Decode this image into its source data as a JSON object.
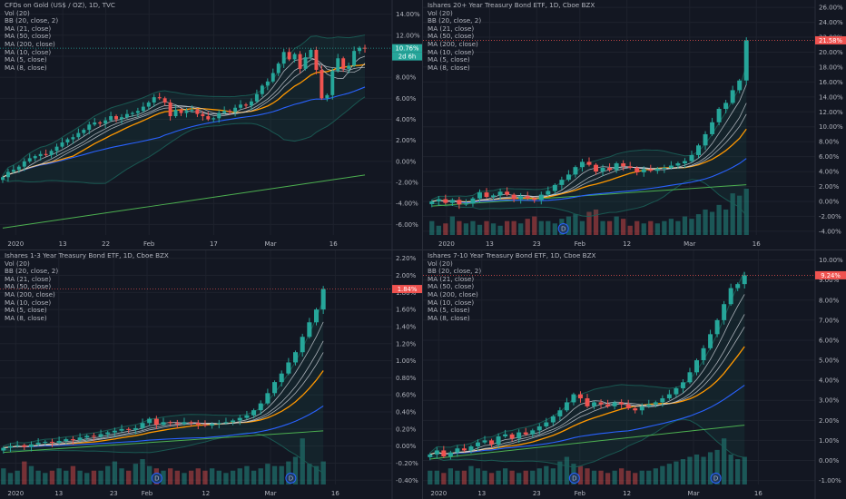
{
  "panes": [
    {
      "title": "CFDs on Gold (US$ / OZ), 1D, TVC",
      "indicators": [
        "Vol (20)",
        "BB (20, close, 2)",
        "MA (21, close)",
        "MA (50, close)",
        "MA (200, close)",
        "MA (10, close)",
        "MA (5, close)",
        "MA (8, close)"
      ],
      "price_label": "10.76%",
      "countdown_label": "2d 6h",
      "label_color": "#26a69a",
      "y_ticks": [
        "14.00%",
        "12.00%",
        "10.00%",
        "8.00%",
        "6.00%",
        "4.00%",
        "2.00%",
        "0.00%",
        "-2.00%",
        "-4.00%",
        "-6.00%"
      ],
      "x_ticks": [
        "2020",
        "13",
        "22",
        "Feb",
        "17",
        "Mar",
        "16"
      ],
      "has_volume": false
    },
    {
      "title": "Ishares 20+ Year Treasury Bond ETF, 1D, Cboe BZX",
      "indicators": [
        "Vol (20)",
        "BB (20, close, 2)",
        "MA (21, close)",
        "MA (50, close)",
        "MA (200, close)",
        "MA (10, close)",
        "MA (5, close)",
        "MA (8, close)"
      ],
      "price_label": "21.58%",
      "countdown_label": "",
      "label_color": "#ef5350",
      "y_ticks": [
        "26.00%",
        "24.00%",
        "22.00%",
        "20.00%",
        "18.00%",
        "16.00%",
        "14.00%",
        "12.00%",
        "10.00%",
        "8.00%",
        "6.00%",
        "4.00%",
        "2.00%",
        "0.00%",
        "-2.00%",
        "-4.00%"
      ],
      "x_ticks": [
        "2020",
        "13",
        "23",
        "Feb",
        "12",
        "Mar",
        "16"
      ],
      "has_volume": true
    },
    {
      "title": "Ishares 1-3 Year Treasury Bond ETF, 1D, Cboe BZX",
      "indicators": [
        "Vol (20)",
        "BB (20, close, 2)",
        "MA (21, close)",
        "MA (50, close)",
        "MA (200, close)",
        "MA (10, close)",
        "MA (5, close)",
        "MA (8, close)"
      ],
      "price_label": "1.84%",
      "countdown_label": "",
      "label_color": "#ef5350",
      "y_ticks": [
        "2.20%",
        "2.00%",
        "1.80%",
        "1.60%",
        "1.40%",
        "1.20%",
        "1.00%",
        "0.80%",
        "0.60%",
        "0.40%",
        "0.20%",
        "0.00%",
        "-0.20%",
        "-0.40%"
      ],
      "x_ticks": [
        "2020",
        "13",
        "23",
        "Feb",
        "12",
        "Mar",
        "16"
      ],
      "has_volume": true
    },
    {
      "title": "Ishares 7-10 Year Treasury Bond ETF, 1D, Cboe BZX",
      "indicators": [
        "Vol (20)",
        "BB (20, close, 2)",
        "MA (21, close)",
        "MA (50, close)",
        "MA (200, close)",
        "MA (10, close)",
        "MA (5, close)",
        "MA (8, close)"
      ],
      "price_label": "9.24%",
      "countdown_label": "",
      "label_color": "#ef5350",
      "y_ticks": [
        "10.00%",
        "9.00%",
        "8.00%",
        "7.00%",
        "6.00%",
        "5.00%",
        "4.00%",
        "3.00%",
        "2.00%",
        "1.00%",
        "0.00%",
        "-1.00%"
      ],
      "x_ticks": [
        "2020",
        "13",
        "23",
        "Feb",
        "12",
        "Mar",
        "16"
      ],
      "has_volume": true
    }
  ],
  "dividend_marker": "D",
  "colors": {
    "background": "#131722",
    "grid": "#1e222d",
    "text": "#b2b5be",
    "up": "#26a69a",
    "down": "#ef5350",
    "ma_orange": "#ff9800",
    "ma_blue": "#2962ff",
    "ma_green": "#4caf50",
    "ma_white": "#d1d4dc",
    "bb_band": "#1b5e57"
  },
  "chart_data": [
    {
      "type": "candlestick",
      "title": "CFDs on Gold (US$ / OZ), 1D, TVC",
      "ylim": [
        -7,
        15
      ],
      "close": [
        -1.5,
        -1.0,
        -0.8,
        -0.5,
        0.0,
        0.3,
        0.5,
        0.7,
        0.6,
        1.0,
        1.4,
        1.8,
        2.1,
        2.3,
        2.7,
        3.0,
        3.5,
        3.7,
        3.6,
        3.9,
        4.3,
        4.0,
        4.2,
        4.5,
        4.6,
        4.8,
        5.2,
        5.6,
        6.1,
        6.0,
        5.6,
        4.3,
        4.9,
        4.6,
        4.8,
        4.9,
        4.5,
        4.3,
        4.0,
        4.1,
        4.6,
        4.8,
        4.7,
        5.1,
        5.4,
        5.3,
        5.7,
        6.4,
        7.2,
        7.6,
        8.4,
        9.3,
        10.4,
        9.7,
        10.2,
        8.8,
        9.9,
        10.6,
        8.7,
        6.0,
        6.3,
        8.6,
        9.8,
        8.8,
        9.1,
        10.5,
        10.8,
        10.76
      ],
      "ma_21_end": 7.5,
      "ma_50_end": 5.0,
      "ma_200_end": -1.3
    },
    {
      "type": "candlestick",
      "title": "Ishares 20+ Year Treasury Bond ETF, 1D, Cboe BZX",
      "ylim": [
        -4.5,
        26.5
      ],
      "close": [
        0.0,
        0.3,
        -0.2,
        0.2,
        -0.4,
        -0.3,
        0.4,
        1.2,
        0.6,
        0.8,
        1.3,
        0.9,
        0.3,
        0.7,
        0.4,
        0.2,
        0.9,
        1.4,
        2.2,
        2.9,
        3.6,
        4.6,
        5.3,
        4.9,
        4.0,
        4.5,
        4.2,
        5.1,
        4.7,
        4.5,
        3.9,
        4.3,
        4.1,
        4.4,
        4.5,
        4.8,
        5.1,
        5.4,
        6.2,
        7.5,
        9.0,
        10.6,
        12.4,
        13.2,
        14.9,
        16.2,
        21.58
      ],
      "volume_rel": [
        0.3,
        0.2,
        0.25,
        0.4,
        0.3,
        0.25,
        0.3,
        0.22,
        0.3,
        0.25,
        0.2,
        0.3,
        0.3,
        0.25,
        0.35,
        0.4,
        0.3,
        0.3,
        0.25,
        0.35,
        0.4,
        0.45,
        0.3,
        0.5,
        0.55,
        0.3,
        0.3,
        0.4,
        0.35,
        0.2,
        0.3,
        0.25,
        0.3,
        0.25,
        0.3,
        0.35,
        0.3,
        0.4,
        0.35,
        0.45,
        0.55,
        0.5,
        0.65,
        0.55,
        0.9,
        0.85,
        1.0
      ]
    },
    {
      "type": "candlestick",
      "title": "Ishares 1-3 Year Treasury Bond ETF, 1D, Cboe BZX",
      "ylim": [
        -0.45,
        2.25
      ],
      "close": [
        -0.02,
        0.0,
        0.01,
        -0.01,
        0.02,
        0.04,
        0.05,
        0.04,
        0.06,
        0.08,
        0.07,
        0.1,
        0.12,
        0.11,
        0.14,
        0.16,
        0.18,
        0.2,
        0.19,
        0.21,
        0.27,
        0.32,
        0.25,
        0.28,
        0.27,
        0.26,
        0.28,
        0.27,
        0.25,
        0.24,
        0.26,
        0.27,
        0.28,
        0.3,
        0.33,
        0.36,
        0.42,
        0.5,
        0.62,
        0.75,
        0.85,
        0.98,
        1.1,
        1.28,
        1.45,
        1.6,
        1.84
      ],
      "volume_rel": [
        0.35,
        0.25,
        0.3,
        0.5,
        0.4,
        0.3,
        0.25,
        0.3,
        0.35,
        0.3,
        0.4,
        0.3,
        0.25,
        0.3,
        0.3,
        0.4,
        0.5,
        0.35,
        0.3,
        0.45,
        0.55,
        0.4,
        0.35,
        0.3,
        0.35,
        0.3,
        0.25,
        0.3,
        0.35,
        0.3,
        0.35,
        0.3,
        0.25,
        0.3,
        0.35,
        0.4,
        0.3,
        0.35,
        0.45,
        0.4,
        0.4,
        0.5,
        0.6,
        1.0,
        0.45,
        0.4,
        0.5
      ]
    },
    {
      "type": "candlestick",
      "title": "Ishares 7-10 Year Treasury Bond ETF, 1D, Cboe BZX",
      "ylim": [
        -1.2,
        10.3
      ],
      "close": [
        0.3,
        0.5,
        0.2,
        0.4,
        0.6,
        0.5,
        0.7,
        0.9,
        1.0,
        0.8,
        1.2,
        1.3,
        1.1,
        1.4,
        1.3,
        1.5,
        1.7,
        1.9,
        2.2,
        2.5,
        2.9,
        3.3,
        3.1,
        2.7,
        2.9,
        2.8,
        2.7,
        2.9,
        2.8,
        2.6,
        2.5,
        2.7,
        2.8,
        2.9,
        3.1,
        3.3,
        3.6,
        3.9,
        4.4,
        5.0,
        5.6,
        6.3,
        7.0,
        7.8,
        8.6,
        8.8,
        9.24
      ],
      "volume_rel": [
        0.3,
        0.3,
        0.25,
        0.35,
        0.3,
        0.3,
        0.4,
        0.35,
        0.3,
        0.25,
        0.3,
        0.35,
        0.3,
        0.25,
        0.3,
        0.3,
        0.35,
        0.4,
        0.35,
        0.5,
        0.6,
        0.45,
        0.4,
        0.35,
        0.3,
        0.3,
        0.25,
        0.3,
        0.35,
        0.3,
        0.25,
        0.3,
        0.3,
        0.35,
        0.4,
        0.45,
        0.5,
        0.55,
        0.6,
        0.65,
        0.6,
        0.7,
        0.75,
        1.0,
        0.65,
        0.55,
        0.6
      ]
    }
  ]
}
